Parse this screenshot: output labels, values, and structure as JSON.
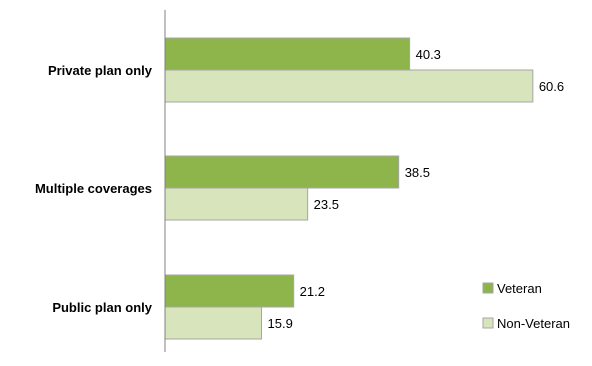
{
  "chart_data": {
    "type": "bar",
    "orientation": "horizontal",
    "categories": [
      "Private plan only",
      "Multiple coverages",
      "Public plan only"
    ],
    "series": [
      {
        "name": "Veteran",
        "values": [
          40.3,
          38.5,
          21.2
        ],
        "value_labels": [
          "40.3",
          "38.5",
          "21.2"
        ],
        "color": "#8db54b"
      },
      {
        "name": "Non-Veteran",
        "values": [
          60.6,
          23.5,
          15.9
        ],
        "value_labels": [
          "60.6",
          "23.5",
          "15.9"
        ],
        "color": "#d8e4bc"
      }
    ],
    "xlim": [
      0,
      65
    ],
    "grid": false,
    "legend_position": "right",
    "bar_border_color": "#a6a6a6",
    "axis_color": "#808080"
  }
}
